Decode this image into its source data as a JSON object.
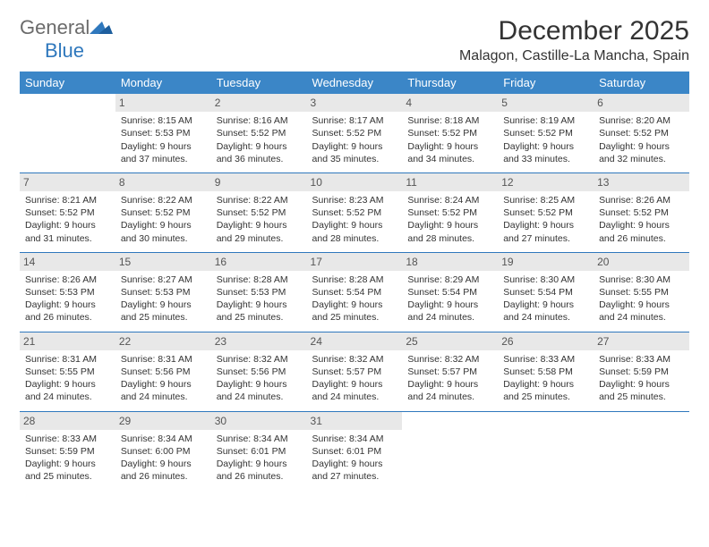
{
  "brand": {
    "word1": "General",
    "word2": "Blue"
  },
  "title": "December 2025",
  "location": "Malagon, Castille-La Mancha, Spain",
  "colors": {
    "header_bg": "#3b86c7",
    "header_text": "#ffffff",
    "daynum_bg": "#e8e8e8",
    "rule": "#2f78bd",
    "logo_gray": "#6b6b6b",
    "logo_blue": "#2f78bd",
    "body_text": "#333333",
    "page_bg": "#ffffff"
  },
  "typography": {
    "title_fontsize": 30,
    "location_fontsize": 16,
    "weekday_fontsize": 13,
    "cell_fontsize": 10.5,
    "daynum_fontsize": 12
  },
  "calendar": {
    "type": "table",
    "columns": [
      "Sunday",
      "Monday",
      "Tuesday",
      "Wednesday",
      "Thursday",
      "Friday",
      "Saturday"
    ],
    "weeks": [
      [
        null,
        {
          "day": "1",
          "sunrise": "Sunrise: 8:15 AM",
          "sunset": "Sunset: 5:53 PM",
          "daylight": "Daylight: 9 hours and 37 minutes."
        },
        {
          "day": "2",
          "sunrise": "Sunrise: 8:16 AM",
          "sunset": "Sunset: 5:52 PM",
          "daylight": "Daylight: 9 hours and 36 minutes."
        },
        {
          "day": "3",
          "sunrise": "Sunrise: 8:17 AM",
          "sunset": "Sunset: 5:52 PM",
          "daylight": "Daylight: 9 hours and 35 minutes."
        },
        {
          "day": "4",
          "sunrise": "Sunrise: 8:18 AM",
          "sunset": "Sunset: 5:52 PM",
          "daylight": "Daylight: 9 hours and 34 minutes."
        },
        {
          "day": "5",
          "sunrise": "Sunrise: 8:19 AM",
          "sunset": "Sunset: 5:52 PM",
          "daylight": "Daylight: 9 hours and 33 minutes."
        },
        {
          "day": "6",
          "sunrise": "Sunrise: 8:20 AM",
          "sunset": "Sunset: 5:52 PM",
          "daylight": "Daylight: 9 hours and 32 minutes."
        }
      ],
      [
        {
          "day": "7",
          "sunrise": "Sunrise: 8:21 AM",
          "sunset": "Sunset: 5:52 PM",
          "daylight": "Daylight: 9 hours and 31 minutes."
        },
        {
          "day": "8",
          "sunrise": "Sunrise: 8:22 AM",
          "sunset": "Sunset: 5:52 PM",
          "daylight": "Daylight: 9 hours and 30 minutes."
        },
        {
          "day": "9",
          "sunrise": "Sunrise: 8:22 AM",
          "sunset": "Sunset: 5:52 PM",
          "daylight": "Daylight: 9 hours and 29 minutes."
        },
        {
          "day": "10",
          "sunrise": "Sunrise: 8:23 AM",
          "sunset": "Sunset: 5:52 PM",
          "daylight": "Daylight: 9 hours and 28 minutes."
        },
        {
          "day": "11",
          "sunrise": "Sunrise: 8:24 AM",
          "sunset": "Sunset: 5:52 PM",
          "daylight": "Daylight: 9 hours and 28 minutes."
        },
        {
          "day": "12",
          "sunrise": "Sunrise: 8:25 AM",
          "sunset": "Sunset: 5:52 PM",
          "daylight": "Daylight: 9 hours and 27 minutes."
        },
        {
          "day": "13",
          "sunrise": "Sunrise: 8:26 AM",
          "sunset": "Sunset: 5:52 PM",
          "daylight": "Daylight: 9 hours and 26 minutes."
        }
      ],
      [
        {
          "day": "14",
          "sunrise": "Sunrise: 8:26 AM",
          "sunset": "Sunset: 5:53 PM",
          "daylight": "Daylight: 9 hours and 26 minutes."
        },
        {
          "day": "15",
          "sunrise": "Sunrise: 8:27 AM",
          "sunset": "Sunset: 5:53 PM",
          "daylight": "Daylight: 9 hours and 25 minutes."
        },
        {
          "day": "16",
          "sunrise": "Sunrise: 8:28 AM",
          "sunset": "Sunset: 5:53 PM",
          "daylight": "Daylight: 9 hours and 25 minutes."
        },
        {
          "day": "17",
          "sunrise": "Sunrise: 8:28 AM",
          "sunset": "Sunset: 5:54 PM",
          "daylight": "Daylight: 9 hours and 25 minutes."
        },
        {
          "day": "18",
          "sunrise": "Sunrise: 8:29 AM",
          "sunset": "Sunset: 5:54 PM",
          "daylight": "Daylight: 9 hours and 24 minutes."
        },
        {
          "day": "19",
          "sunrise": "Sunrise: 8:30 AM",
          "sunset": "Sunset: 5:54 PM",
          "daylight": "Daylight: 9 hours and 24 minutes."
        },
        {
          "day": "20",
          "sunrise": "Sunrise: 8:30 AM",
          "sunset": "Sunset: 5:55 PM",
          "daylight": "Daylight: 9 hours and 24 minutes."
        }
      ],
      [
        {
          "day": "21",
          "sunrise": "Sunrise: 8:31 AM",
          "sunset": "Sunset: 5:55 PM",
          "daylight": "Daylight: 9 hours and 24 minutes."
        },
        {
          "day": "22",
          "sunrise": "Sunrise: 8:31 AM",
          "sunset": "Sunset: 5:56 PM",
          "daylight": "Daylight: 9 hours and 24 minutes."
        },
        {
          "day": "23",
          "sunrise": "Sunrise: 8:32 AM",
          "sunset": "Sunset: 5:56 PM",
          "daylight": "Daylight: 9 hours and 24 minutes."
        },
        {
          "day": "24",
          "sunrise": "Sunrise: 8:32 AM",
          "sunset": "Sunset: 5:57 PM",
          "daylight": "Daylight: 9 hours and 24 minutes."
        },
        {
          "day": "25",
          "sunrise": "Sunrise: 8:32 AM",
          "sunset": "Sunset: 5:57 PM",
          "daylight": "Daylight: 9 hours and 24 minutes."
        },
        {
          "day": "26",
          "sunrise": "Sunrise: 8:33 AM",
          "sunset": "Sunset: 5:58 PM",
          "daylight": "Daylight: 9 hours and 25 minutes."
        },
        {
          "day": "27",
          "sunrise": "Sunrise: 8:33 AM",
          "sunset": "Sunset: 5:59 PM",
          "daylight": "Daylight: 9 hours and 25 minutes."
        }
      ],
      [
        {
          "day": "28",
          "sunrise": "Sunrise: 8:33 AM",
          "sunset": "Sunset: 5:59 PM",
          "daylight": "Daylight: 9 hours and 25 minutes."
        },
        {
          "day": "29",
          "sunrise": "Sunrise: 8:34 AM",
          "sunset": "Sunset: 6:00 PM",
          "daylight": "Daylight: 9 hours and 26 minutes."
        },
        {
          "day": "30",
          "sunrise": "Sunrise: 8:34 AM",
          "sunset": "Sunset: 6:01 PM",
          "daylight": "Daylight: 9 hours and 26 minutes."
        },
        {
          "day": "31",
          "sunrise": "Sunrise: 8:34 AM",
          "sunset": "Sunset: 6:01 PM",
          "daylight": "Daylight: 9 hours and 27 minutes."
        },
        null,
        null,
        null
      ]
    ]
  }
}
